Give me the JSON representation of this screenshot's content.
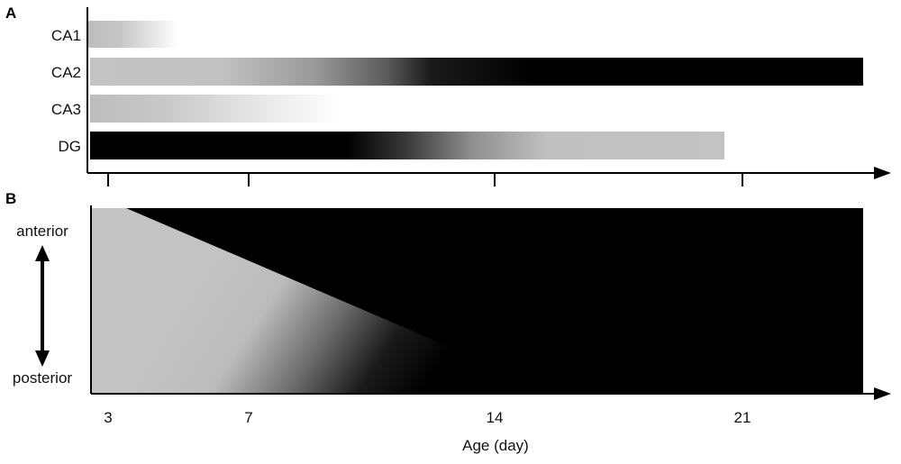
{
  "panel_a": {
    "letter": "A",
    "rows": [
      {
        "label": "CA1"
      },
      {
        "label": "CA2"
      },
      {
        "label": "CA3"
      },
      {
        "label": "DG"
      }
    ]
  },
  "panel_b": {
    "letter": "B",
    "top_label": "anterior",
    "bottom_label": "posterior"
  },
  "axis": {
    "ticks": [
      "3",
      "7",
      "14",
      "21"
    ],
    "xlabel": "Age (day)"
  },
  "colors": {
    "light_gray": "#c3c3c3",
    "black": "#000000"
  }
}
